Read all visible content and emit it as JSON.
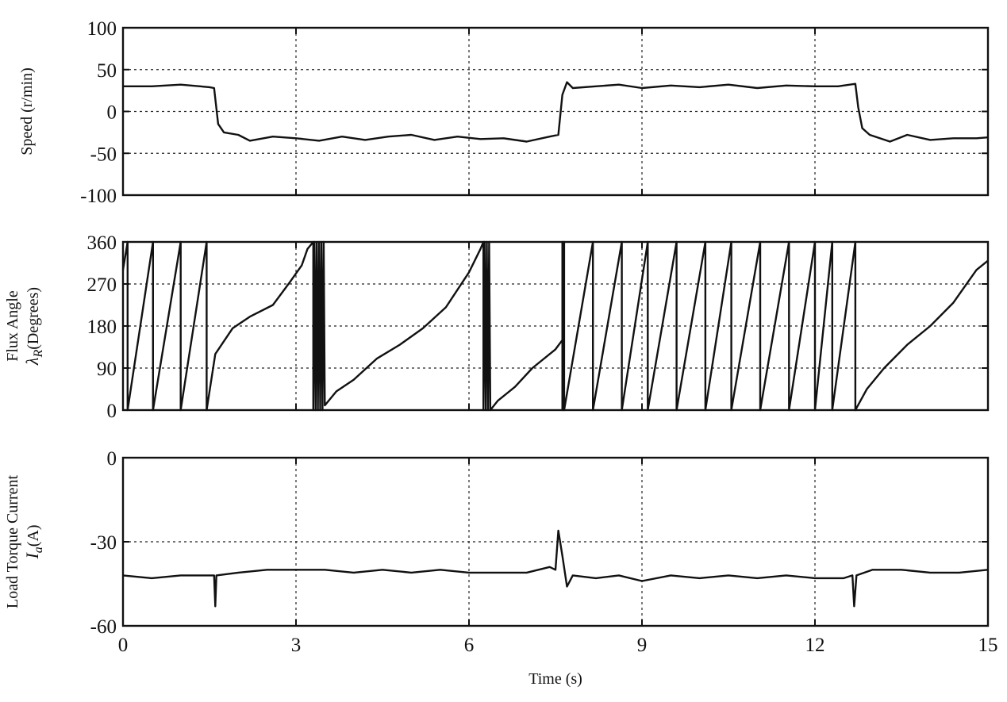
{
  "chart_data": [
    {
      "type": "line",
      "ylabel": "Speed (r/min)",
      "xlim": [
        0,
        15
      ],
      "ylim": [
        -100,
        100
      ],
      "yticks": [
        100,
        50,
        0,
        -50,
        -100
      ],
      "xticks": [
        0,
        3,
        6,
        9,
        12,
        15
      ],
      "grid": true,
      "series": [
        {
          "points": [
            [
              0,
              30
            ],
            [
              0.5,
              30
            ],
            [
              1.0,
              32
            ],
            [
              1.5,
              29
            ],
            [
              1.58,
              28
            ],
            [
              1.65,
              -15
            ],
            [
              1.75,
              -25
            ],
            [
              2.0,
              -28
            ],
            [
              2.2,
              -35
            ],
            [
              2.6,
              -30
            ],
            [
              3.0,
              -32
            ],
            [
              3.4,
              -35
            ],
            [
              3.8,
              -30
            ],
            [
              4.2,
              -34
            ],
            [
              4.6,
              -30
            ],
            [
              5.0,
              -28
            ],
            [
              5.4,
              -34
            ],
            [
              5.8,
              -30
            ],
            [
              6.2,
              -33
            ],
            [
              6.6,
              -32
            ],
            [
              7.0,
              -36
            ],
            [
              7.4,
              -30
            ],
            [
              7.55,
              -28
            ],
            [
              7.62,
              20
            ],
            [
              7.7,
              35
            ],
            [
              7.8,
              28
            ],
            [
              8.2,
              30
            ],
            [
              8.6,
              32
            ],
            [
              9.0,
              28
            ],
            [
              9.5,
              31
            ],
            [
              10.0,
              29
            ],
            [
              10.5,
              32
            ],
            [
              11.0,
              28
            ],
            [
              11.5,
              31
            ],
            [
              12.0,
              30
            ],
            [
              12.4,
              30
            ],
            [
              12.7,
              33
            ],
            [
              12.75,
              5
            ],
            [
              12.82,
              -20
            ],
            [
              12.95,
              -28
            ],
            [
              13.3,
              -36
            ],
            [
              13.6,
              -28
            ],
            [
              14.0,
              -34
            ],
            [
              14.4,
              -32
            ],
            [
              14.8,
              -32
            ],
            [
              15,
              -31
            ]
          ]
        }
      ]
    },
    {
      "type": "line",
      "ylabel": "Flux Angle",
      "ylabel2_symbol": "λ",
      "ylabel2_sub": "R",
      "ylabel2_unit": "(Degrees)",
      "xlim": [
        0,
        15
      ],
      "ylim": [
        0,
        360
      ],
      "yticks": [
        360,
        270,
        180,
        90,
        0
      ],
      "xticks": [
        0,
        3,
        6,
        9,
        12,
        15
      ],
      "grid": true,
      "series": [
        {
          "points": [
            [
              0,
              300
            ],
            [
              0.08,
              360
            ],
            [
              0.08,
              0
            ],
            [
              0.52,
              360
            ],
            [
              0.52,
              0
            ],
            [
              1.0,
              360
            ],
            [
              1.0,
              0
            ],
            [
              1.45,
              360
            ],
            [
              1.45,
              0
            ],
            [
              1.6,
              120
            ],
            [
              1.9,
              175
            ],
            [
              2.2,
              200
            ],
            [
              2.6,
              225
            ],
            [
              2.9,
              275
            ],
            [
              3.1,
              310
            ],
            [
              3.2,
              345
            ],
            [
              3.3,
              360
            ],
            [
              3.3,
              0
            ],
            [
              3.32,
              360
            ],
            [
              3.34,
              0
            ],
            [
              3.36,
              360
            ],
            [
              3.38,
              0
            ],
            [
              3.4,
              360
            ],
            [
              3.42,
              0
            ],
            [
              3.44,
              360
            ],
            [
              3.46,
              0
            ],
            [
              3.48,
              360
            ],
            [
              3.5,
              10
            ],
            [
              3.7,
              40
            ],
            [
              4.0,
              65
            ],
            [
              4.4,
              110
            ],
            [
              4.8,
              140
            ],
            [
              5.2,
              175
            ],
            [
              5.6,
              220
            ],
            [
              6.0,
              295
            ],
            [
              6.2,
              345
            ],
            [
              6.25,
              360
            ],
            [
              6.25,
              0
            ],
            [
              6.27,
              360
            ],
            [
              6.29,
              0
            ],
            [
              6.31,
              360
            ],
            [
              6.33,
              0
            ],
            [
              6.35,
              360
            ],
            [
              6.37,
              0
            ],
            [
              6.5,
              20
            ],
            [
              6.8,
              50
            ],
            [
              7.1,
              90
            ],
            [
              7.5,
              130
            ],
            [
              7.62,
              150
            ],
            [
              7.62,
              360
            ],
            [
              7.62,
              0
            ],
            [
              7.65,
              360
            ],
            [
              7.65,
              0
            ],
            [
              8.15,
              360
            ],
            [
              8.15,
              0
            ],
            [
              8.65,
              360
            ],
            [
              8.65,
              0
            ],
            [
              9.1,
              360
            ],
            [
              9.1,
              0
            ],
            [
              9.6,
              360
            ],
            [
              9.6,
              0
            ],
            [
              10.1,
              360
            ],
            [
              10.1,
              0
            ],
            [
              10.55,
              360
            ],
            [
              10.55,
              0
            ],
            [
              11.05,
              360
            ],
            [
              11.05,
              0
            ],
            [
              11.55,
              360
            ],
            [
              11.55,
              0
            ],
            [
              12.0,
              360
            ],
            [
              12.0,
              0
            ],
            [
              12.3,
              360
            ],
            [
              12.3,
              0
            ],
            [
              12.7,
              360
            ],
            [
              12.7,
              0
            ],
            [
              12.9,
              45
            ],
            [
              13.2,
              90
            ],
            [
              13.6,
              140
            ],
            [
              14.0,
              180
            ],
            [
              14.4,
              230
            ],
            [
              14.8,
              300
            ],
            [
              15,
              320
            ]
          ]
        }
      ]
    },
    {
      "type": "line",
      "ylabel": "Load Torque Current",
      "ylabel2_symbol": "I",
      "ylabel2_sub": "a",
      "ylabel2_unit": "(A)",
      "xlabel": "Time (s)",
      "xlim": [
        0,
        15
      ],
      "ylim": [
        -60,
        0
      ],
      "yticks": [
        0,
        -30,
        -60
      ],
      "xticks": [
        0,
        3,
        6,
        9,
        12,
        15
      ],
      "xticklabels": [
        "0",
        "3",
        "6",
        "9",
        "12",
        "15"
      ],
      "grid": true,
      "series": [
        {
          "points": [
            [
              0,
              -42
            ],
            [
              0.5,
              -43
            ],
            [
              1.0,
              -42
            ],
            [
              1.5,
              -42
            ],
            [
              1.58,
              -42
            ],
            [
              1.6,
              -53
            ],
            [
              1.62,
              -42
            ],
            [
              2.0,
              -41
            ],
            [
              2.5,
              -40
            ],
            [
              3.0,
              -40
            ],
            [
              3.5,
              -40
            ],
            [
              4.0,
              -41
            ],
            [
              4.5,
              -40
            ],
            [
              5.0,
              -41
            ],
            [
              5.5,
              -40
            ],
            [
              6.0,
              -41
            ],
            [
              6.5,
              -41
            ],
            [
              7.0,
              -41
            ],
            [
              7.4,
              -39
            ],
            [
              7.5,
              -40
            ],
            [
              7.55,
              -26
            ],
            [
              7.62,
              -35
            ],
            [
              7.7,
              -46
            ],
            [
              7.8,
              -42
            ],
            [
              8.2,
              -43
            ],
            [
              8.6,
              -42
            ],
            [
              9.0,
              -44
            ],
            [
              9.5,
              -42
            ],
            [
              10.0,
              -43
            ],
            [
              10.5,
              -42
            ],
            [
              11.0,
              -43
            ],
            [
              11.5,
              -42
            ],
            [
              12.0,
              -43
            ],
            [
              12.5,
              -43
            ],
            [
              12.65,
              -42
            ],
            [
              12.68,
              -53
            ],
            [
              12.72,
              -42
            ],
            [
              13.0,
              -40
            ],
            [
              13.5,
              -40
            ],
            [
              14.0,
              -41
            ],
            [
              14.5,
              -41
            ],
            [
              15,
              -40
            ]
          ]
        }
      ]
    }
  ]
}
